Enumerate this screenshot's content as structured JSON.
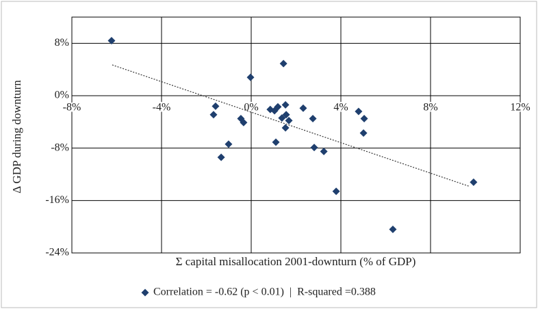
{
  "chart_data": {
    "type": "scatter",
    "x_label": "Σ capital misallocation 2001-downturn (% of GDP)",
    "y_label": "Δ GDP during downturn",
    "series": [
      {
        "name": "Correlation = -0.62 (p < 0.01)  |  R-squared =0.388",
        "color": "#1f3f6e",
        "x": [
          -6.23,
          1.44,
          -0.03,
          -1.59,
          -1.68,
          -0.46,
          -0.34,
          -1.01,
          -1.34,
          0.85,
          1.04,
          1.19,
          1.53,
          1.56,
          1.37,
          1.68,
          1.53,
          1.1,
          2.32,
          2.75,
          2.81,
          3.24,
          3.79,
          4.79,
          5.04,
          5.01,
          6.32,
          9.92
        ],
        "values": [
          8.4,
          4.9,
          2.8,
          -1.6,
          -2.9,
          -3.5,
          -4.1,
          -7.4,
          -9.4,
          -2.1,
          -2.3,
          -1.7,
          -1.4,
          -2.9,
          -3.4,
          -3.8,
          -4.9,
          -7.1,
          -1.9,
          -3.5,
          -7.9,
          -8.5,
          -14.6,
          -2.4,
          -3.5,
          -5.7,
          -20.4,
          -13.2
        ]
      }
    ],
    "trendline": {
      "x": [
        -6.2,
        9.7
      ],
      "y": [
        4.7,
        -13.8
      ]
    },
    "xlim": [
      -8,
      12
    ],
    "xticks": [
      {
        "value": -8,
        "label": "-8%"
      },
      {
        "value": -4,
        "label": "-4%"
      },
      {
        "value": 0,
        "label": "0%"
      },
      {
        "value": 4,
        "label": "4%"
      },
      {
        "value": 8,
        "label": "8%"
      },
      {
        "value": 12,
        "label": "12%"
      }
    ],
    "ylim": [
      -24,
      12
    ],
    "yticks": [
      {
        "value": -24,
        "label": "-24%"
      },
      {
        "value": -16,
        "label": "-16%"
      },
      {
        "value": -8,
        "label": "-8%"
      },
      {
        "value": 0,
        "label": "0%"
      },
      {
        "value": 8,
        "label": "8%"
      }
    ],
    "grid": true
  }
}
